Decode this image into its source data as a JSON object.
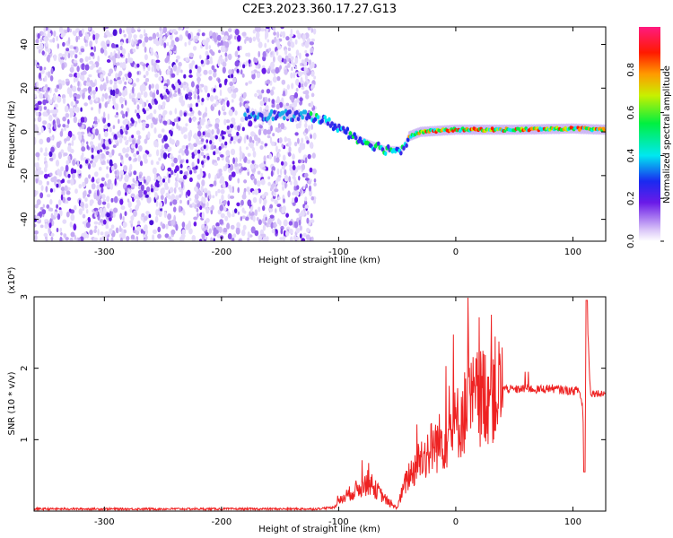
{
  "title": "C2E3.2023.360.17.27.G13",
  "chart_data": [
    {
      "type": "heatmap",
      "xlabel": "Height of straight line (km)",
      "ylabel": "Frequency (Hz)",
      "xlim": [
        -360,
        128
      ],
      "ylim": [
        -50,
        48
      ],
      "x_ticks": [
        -300,
        -200,
        -100,
        0,
        100
      ],
      "y_ticks": [
        -40,
        -20,
        0,
        20,
        40
      ],
      "colorbar": {
        "label": "Normalized spectral amplitude",
        "range": [
          0,
          1
        ],
        "ticks": [
          "0.0",
          "0.2",
          "0.4",
          "0.6",
          "0.8"
        ]
      },
      "features": {
        "noise_region_x": [
          -360,
          -120
        ],
        "signal_track": [
          {
            "x": -180,
            "y": 8
          },
          {
            "x": -120,
            "y": 7
          },
          {
            "x": -100,
            "y": 2
          },
          {
            "x": -80,
            "y": -4
          },
          {
            "x": -60,
            "y": -8
          },
          {
            "x": -45,
            "y": -8
          },
          {
            "x": -40,
            "y": -2
          },
          {
            "x": -30,
            "y": 0
          },
          {
            "x": 0,
            "y": 1
          },
          {
            "x": 50,
            "y": 1
          },
          {
            "x": 100,
            "y": 1.5
          },
          {
            "x": 128,
            "y": 1
          }
        ]
      }
    },
    {
      "type": "line",
      "xlabel": "Height of straight line (km)",
      "ylabel": "SNR (10 * v/v)",
      "y_multiplier": "(x10⁴)",
      "xlim": [
        -360,
        128
      ],
      "ylim": [
        0,
        3
      ],
      "x_ticks": [
        -300,
        -200,
        -100,
        0,
        100
      ],
      "y_ticks": [
        1,
        2,
        3
      ],
      "color": "#ee2222",
      "series": [
        {
          "x": [
            -360,
            -120,
            -105,
            -95,
            -85,
            -75,
            -65,
            -55,
            -50,
            -45,
            -40,
            -35,
            -30,
            -25,
            -20,
            -15,
            -10,
            -5,
            0,
            10,
            20,
            30,
            40,
            50,
            60,
            70,
            80,
            90,
            100,
            105,
            108,
            110,
            112,
            115,
            128
          ],
          "y": [
            0.03,
            0.03,
            0.05,
            0.2,
            0.3,
            0.4,
            0.25,
            0.08,
            0.05,
            0.3,
            0.5,
            0.6,
            0.75,
            0.8,
            0.9,
            0.95,
            1.0,
            1.1,
            1.2,
            1.45,
            1.6,
            1.68,
            1.72,
            1.7,
            1.72,
            1.7,
            1.72,
            1.7,
            1.68,
            1.7,
            1.5,
            0.9,
            2.8,
            1.65,
            1.65
          ]
        }
      ]
    }
  ]
}
